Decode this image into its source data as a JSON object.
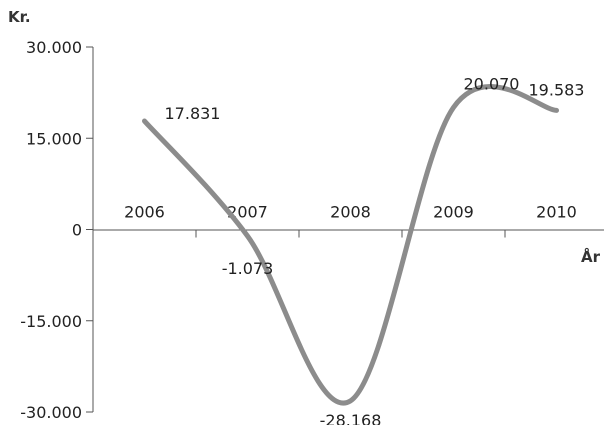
{
  "chart_data": {
    "type": "line",
    "title": "",
    "ylabel": "Kr.",
    "xlabel": "År",
    "categories": [
      "2006",
      "2007",
      "2008",
      "2009",
      "2010"
    ],
    "series": [
      {
        "values": [
          17831,
          -1073,
          -28168,
          20070,
          19583
        ]
      }
    ],
    "data_labels": [
      "17.831",
      "-1.073",
      "-28.168",
      "20.070",
      "19.583"
    ],
    "ylim": [
      -30000,
      30000
    ],
    "yticks": [
      30000,
      15000,
      0,
      -15000,
      -30000
    ],
    "ytick_labels": [
      "30.000",
      "15.000",
      "0",
      "-15.000",
      "-30.000"
    ],
    "grid": false,
    "legend": "none",
    "smooth": true,
    "line_color": "#8c8c8c"
  }
}
